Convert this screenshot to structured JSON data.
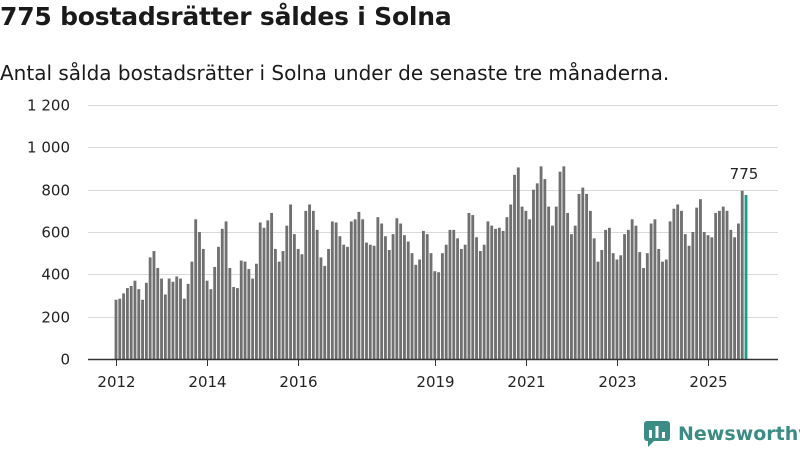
{
  "header": {
    "title": "775 bostadsrätter såldes i Solna",
    "subtitle": "Antal sålda bostadsrätter i Solna under de senaste tre månaderna."
  },
  "brand": {
    "name": "Newsworthy"
  },
  "colors": {
    "bar": "#707070",
    "highlight": "#1f9c8c",
    "grid": "#d9d9d9",
    "axis": "#333333"
  },
  "chart_data": {
    "type": "bar",
    "title": "775 bostadsrätter såldes i Solna",
    "subtitle": "Antal sålda bostadsrätter i Solna under de senaste tre månaderna.",
    "xlabel": "",
    "ylabel": "",
    "ylim": [
      0,
      1200
    ],
    "yticks": [
      0,
      200,
      400,
      600,
      800,
      1000,
      1200
    ],
    "ytick_labels": [
      "0",
      "200",
      "400",
      "600",
      "800",
      "1 000",
      "1 200"
    ],
    "x_start": 2012.0,
    "x_step": 0.0833,
    "xticks": [
      2012,
      2014,
      2016,
      2019,
      2021,
      2023,
      2025
    ],
    "xtick_labels": [
      "2012",
      "2014",
      "2016",
      "2019",
      "2021",
      "2023",
      "2025"
    ],
    "grid": true,
    "highlight_last": true,
    "annotation": {
      "text": "775",
      "target": "last"
    },
    "values": [
      280,
      285,
      310,
      335,
      345,
      370,
      330,
      280,
      360,
      480,
      510,
      430,
      380,
      305,
      380,
      365,
      390,
      380,
      285,
      355,
      460,
      660,
      600,
      520,
      370,
      330,
      435,
      530,
      615,
      650,
      430,
      340,
      335,
      465,
      460,
      425,
      380,
      450,
      645,
      620,
      655,
      690,
      520,
      460,
      510,
      630,
      730,
      590,
      520,
      495,
      700,
      730,
      700,
      610,
      480,
      440,
      520,
      650,
      645,
      580,
      540,
      530,
      650,
      660,
      695,
      660,
      550,
      540,
      535,
      670,
      640,
      580,
      515,
      590,
      665,
      640,
      585,
      555,
      500,
      445,
      470,
      605,
      590,
      500,
      415,
      410,
      500,
      540,
      610,
      610,
      570,
      520,
      540,
      690,
      680,
      575,
      510,
      540,
      650,
      630,
      615,
      620,
      605,
      670,
      730,
      870,
      905,
      720,
      700,
      660,
      800,
      830,
      910,
      850,
      720,
      630,
      720,
      885,
      910,
      690,
      590,
      630,
      780,
      810,
      780,
      700,
      570,
      460,
      515,
      610,
      620,
      500,
      470,
      490,
      590,
      610,
      660,
      630,
      505,
      430,
      500,
      640,
      660,
      520,
      460,
      470,
      650,
      710,
      730,
      700,
      590,
      535,
      600,
      715,
      755,
      600,
      585,
      575,
      690,
      700,
      720,
      700,
      610,
      575,
      640,
      795,
      775
    ]
  }
}
